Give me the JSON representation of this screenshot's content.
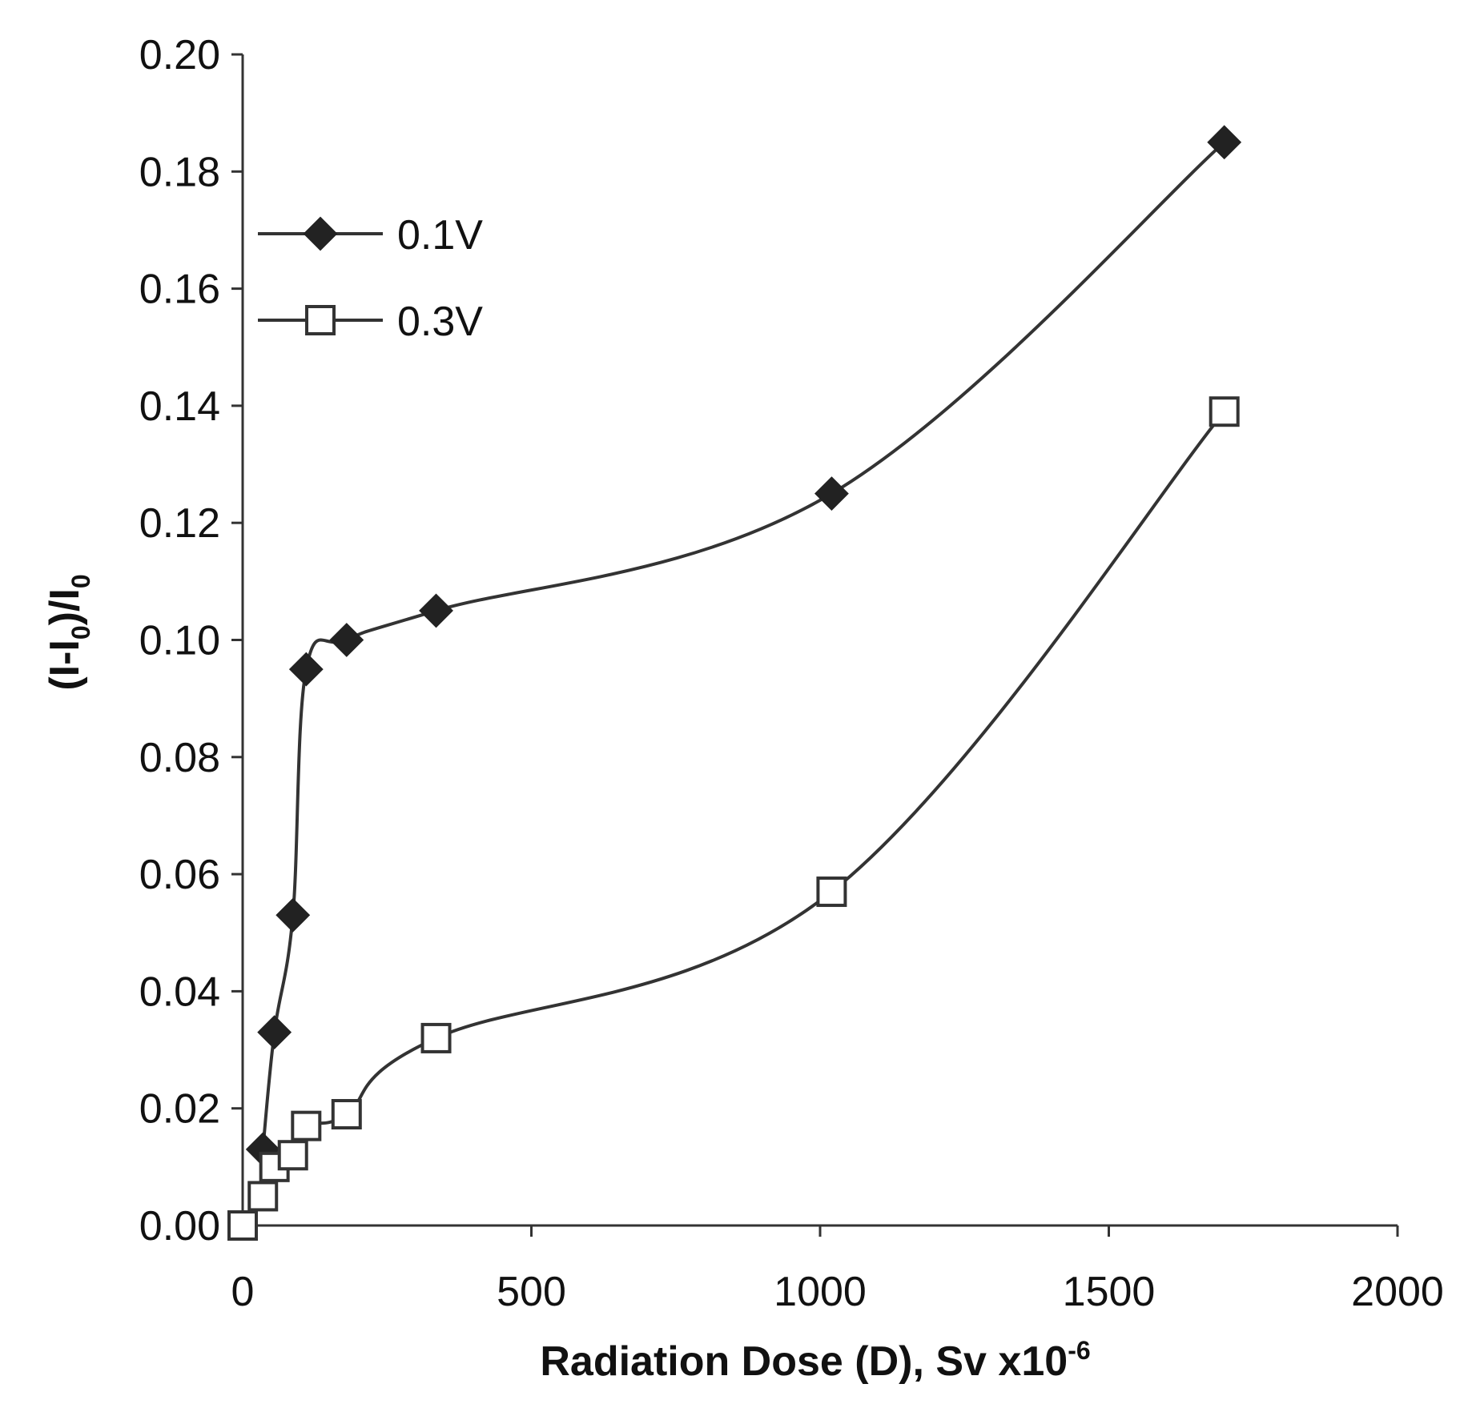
{
  "chart_data": {
    "type": "line",
    "title": "",
    "xlabel": {
      "main": "Radiation Dose (D),  Sv x10",
      "superscript": "-6"
    },
    "ylabel": {
      "part1": "(I-I",
      "sub1": "0",
      "part2": ")/I",
      "sub2": "0"
    },
    "xlim": [
      0,
      2000
    ],
    "ylim": [
      0.0,
      0.2
    ],
    "x_ticks": [
      0,
      500,
      1000,
      1500,
      2000
    ],
    "x_tick_labels": [
      "0",
      "500",
      "1000",
      "1500",
      "2000"
    ],
    "y_ticks": [
      0.0,
      0.02,
      0.04,
      0.06,
      0.08,
      0.1,
      0.12,
      0.14,
      0.16,
      0.18,
      0.2
    ],
    "y_tick_labels": [
      "0.00",
      "0.02",
      "0.04",
      "0.06",
      "0.08",
      "0.10",
      "0.12",
      "0.14",
      "0.16",
      "0.18",
      "0.20"
    ],
    "grid": false,
    "legend_position": "top-left",
    "series": [
      {
        "name": "0.1V",
        "marker": "filled-diamond",
        "color": "#333333",
        "x": [
          35,
          55,
          87,
          110,
          180,
          335,
          1020,
          1700
        ],
        "y": [
          0.013,
          0.033,
          0.053,
          0.095,
          0.1,
          0.105,
          0.125,
          0.185
        ]
      },
      {
        "name": "0.3V",
        "marker": "open-square",
        "color": "#333333",
        "x": [
          0,
          35,
          55,
          87,
          110,
          180,
          335,
          1020,
          1700
        ],
        "y": [
          0.0,
          0.005,
          0.01,
          0.012,
          0.017,
          0.019,
          0.032,
          0.057,
          0.139
        ]
      }
    ]
  }
}
